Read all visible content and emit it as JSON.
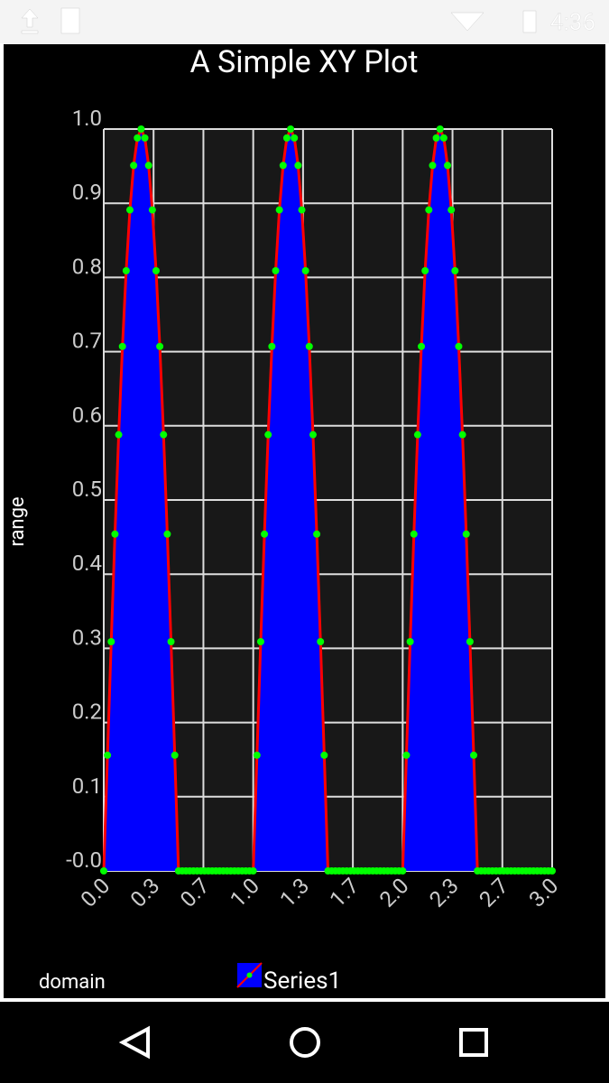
{
  "status_bar": {
    "time": "4:36"
  },
  "chart_data": {
    "type": "area-line",
    "title": "A Simple XY Plot",
    "x_label": "domain",
    "y_label": "range",
    "x": [
      0,
      0.025,
      0.05,
      0.075,
      0.1,
      0.125,
      0.15,
      0.175,
      0.2,
      0.225,
      0.25,
      0.275,
      0.3,
      0.325,
      0.35,
      0.375,
      0.4,
      0.425,
      0.45,
      0.475,
      0.5,
      0.525,
      0.55,
      0.575,
      0.6,
      0.625,
      0.65,
      0.675,
      0.7,
      0.725,
      0.75,
      0.775,
      0.8,
      0.825,
      0.85,
      0.875,
      0.9,
      0.925,
      0.95,
      0.975,
      1,
      1.025,
      1.05,
      1.075,
      1.1,
      1.125,
      1.15,
      1.175,
      1.2,
      1.225,
      1.25,
      1.275,
      1.3,
      1.325,
      1.35,
      1.375,
      1.4,
      1.425,
      1.45,
      1.475,
      1.5,
      1.525,
      1.55,
      1.575,
      1.6,
      1.625,
      1.65,
      1.675,
      1.7,
      1.725,
      1.75,
      1.775,
      1.8,
      1.825,
      1.85,
      1.875,
      1.9,
      1.925,
      1.95,
      1.975,
      2,
      2.025,
      2.05,
      2.075,
      2.1,
      2.125,
      2.15,
      2.175,
      2.2,
      2.225,
      2.25,
      2.275,
      2.3,
      2.325,
      2.35,
      2.375,
      2.4,
      2.425,
      2.45,
      2.475,
      2.5,
      2.525,
      2.55,
      2.575,
      2.6,
      2.625,
      2.65,
      2.675,
      2.7,
      2.725,
      2.75,
      2.775,
      2.8,
      2.825,
      2.85,
      2.875,
      2.9,
      2.925,
      2.95,
      2.975,
      3
    ],
    "series": [
      {
        "name": "Series1",
        "color": "#ff0000",
        "fill": "#0000ff",
        "marker_color": "#00ff00",
        "values": [
          0,
          0.156,
          0.309,
          0.454,
          0.588,
          0.707,
          0.809,
          0.891,
          0.951,
          0.988,
          1,
          0.988,
          0.951,
          0.891,
          0.809,
          0.707,
          0.588,
          0.454,
          0.309,
          0.156,
          0,
          0,
          0,
          0,
          0,
          0,
          0,
          0,
          0,
          0,
          0,
          0,
          0,
          0,
          0,
          0,
          0,
          0,
          0,
          0,
          0,
          0.156,
          0.309,
          0.454,
          0.588,
          0.707,
          0.809,
          0.891,
          0.951,
          0.988,
          1,
          0.988,
          0.951,
          0.891,
          0.809,
          0.707,
          0.588,
          0.454,
          0.309,
          0.156,
          0,
          0,
          0,
          0,
          0,
          0,
          0,
          0,
          0,
          0,
          0,
          0,
          0,
          0,
          0,
          0,
          0,
          0,
          0,
          0,
          0,
          0.156,
          0.309,
          0.454,
          0.588,
          0.707,
          0.809,
          0.891,
          0.951,
          0.988,
          1,
          0.988,
          0.951,
          0.891,
          0.809,
          0.707,
          0.588,
          0.454,
          0.309,
          0.156,
          0,
          0,
          0,
          0,
          0,
          0,
          0,
          0,
          0,
          0,
          0,
          0,
          0,
          0,
          0,
          0,
          0,
          0,
          0,
          0,
          0
        ]
      }
    ],
    "xlim": [
      0,
      3
    ],
    "xticks": [
      {
        "value": 0,
        "label": "0.0"
      },
      {
        "value": 0.3333,
        "label": "0.3"
      },
      {
        "value": 0.6667,
        "label": "0.7"
      },
      {
        "value": 1,
        "label": "1.0"
      },
      {
        "value": 1.3333,
        "label": "1.3"
      },
      {
        "value": 1.6667,
        "label": "1.7"
      },
      {
        "value": 2,
        "label": "2.0"
      },
      {
        "value": 2.3333,
        "label": "2.3"
      },
      {
        "value": 2.6667,
        "label": "2.7"
      },
      {
        "value": 3,
        "label": "3.0"
      }
    ],
    "ylim": [
      0,
      1
    ],
    "yticks": [
      {
        "value": 0,
        "label": "-0.0"
      },
      0.1,
      0.2,
      0.3,
      0.4,
      0.5,
      0.6,
      0.7,
      0.8,
      0.9,
      {
        "value": 1,
        "label": "1.0"
      }
    ],
    "grid": true
  }
}
